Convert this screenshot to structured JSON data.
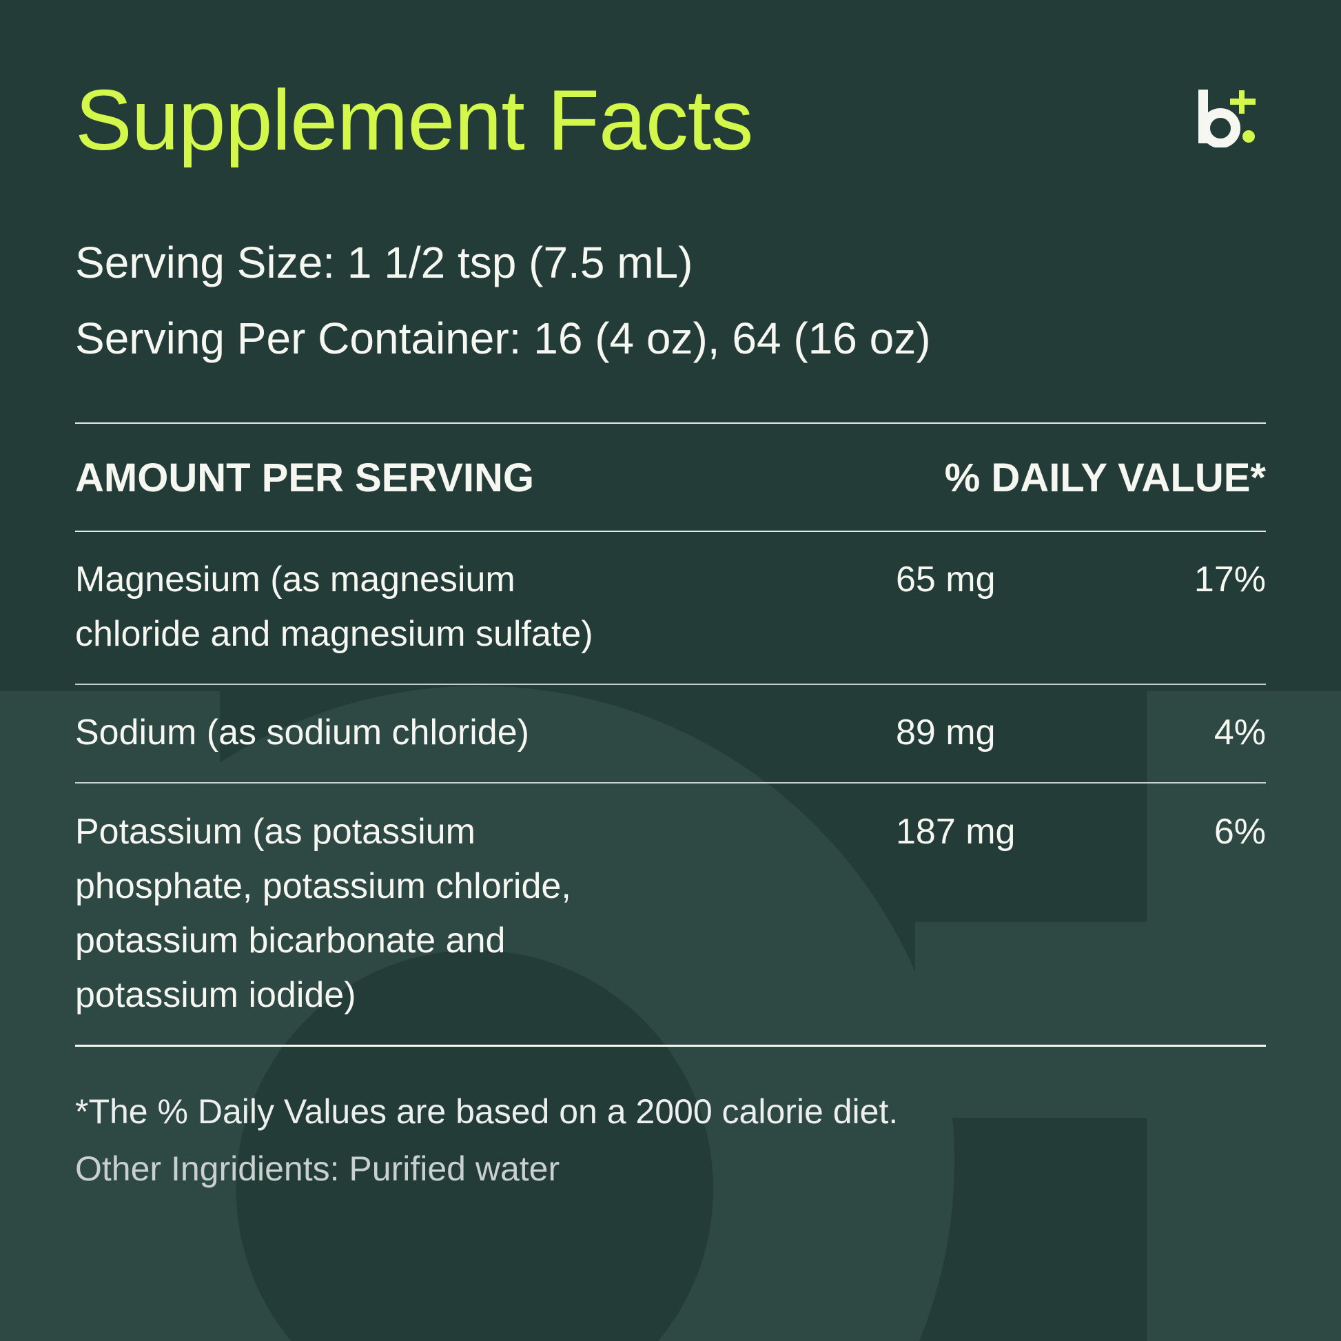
{
  "title": "Supplement Facts",
  "logo": {
    "text": "b+",
    "accent_color": "#d3f74a"
  },
  "serving_size": "Serving Size: 1 1/2 tsp (7.5 mL)",
  "servings_per_container": "Serving Per Container: 16 (4 oz), 64 (16 oz)",
  "table": {
    "header_left": "AMOUNT PER SERVING",
    "header_right": "% DAILY VALUE*",
    "rows": [
      {
        "name_lines": [
          "Magnesium (as magnesium",
          "chloride and magnesium sulfate)"
        ],
        "amount": "65 mg",
        "daily_value": "17%"
      },
      {
        "name_lines": [
          "Sodium (as sodium chloride)"
        ],
        "amount": "89 mg",
        "daily_value": "4%"
      },
      {
        "name_lines": [
          "Potassium (as potassium",
          "phosphate, potassium chloride,",
          "potassium bicarbonate and",
          "potassium iodide)"
        ],
        "amount": "187 mg",
        "daily_value": "6%"
      }
    ]
  },
  "footnote": "*The % Daily Values are based on a 2000 calorie diet.",
  "other_ingredients": "Other Ingridients: Purified water",
  "colors": {
    "background": "#233c38",
    "watermark": "#2e4844",
    "title": "#d3f74a",
    "text": "#f7f7f2"
  }
}
